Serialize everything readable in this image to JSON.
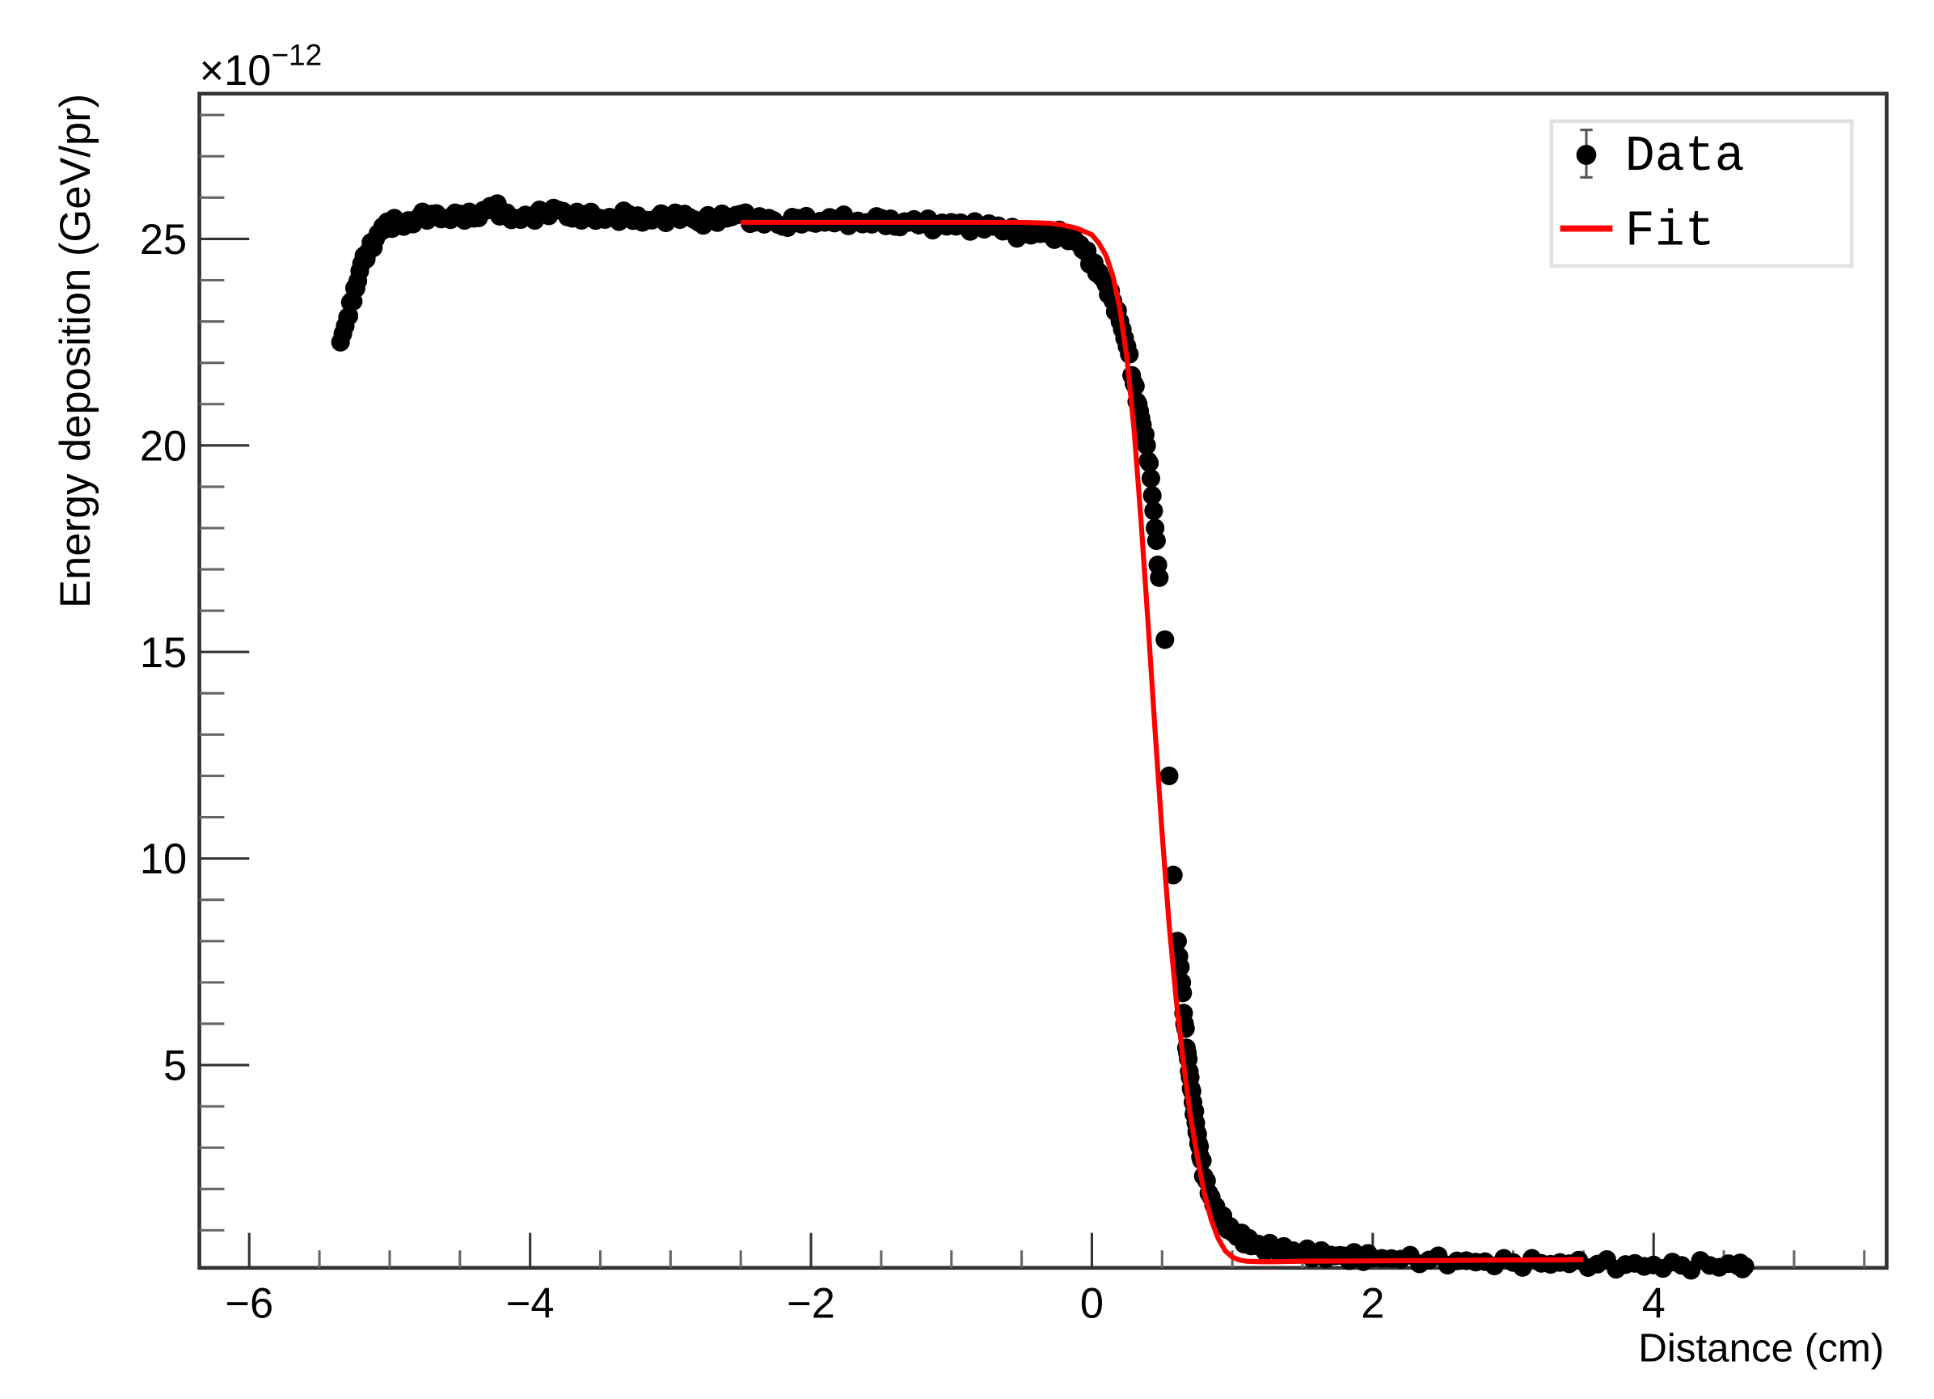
{
  "chart_data": {
    "type": "scatter",
    "title": "",
    "xlabel": "Distance (cm)",
    "ylabel": "Energy deposition (GeV/pr)",
    "y_multiplier": "×10⁻¹²",
    "y_multiplier_base": "×10",
    "y_multiplier_exp": "−12",
    "xlim": [
      -6.35,
      5.65
    ],
    "ylim": [
      0,
      28.5
    ],
    "grid": false,
    "legend_position": "top-right",
    "x_ticks": [
      {
        "value": -6,
        "label": "−6"
      },
      {
        "value": -4,
        "label": "−4"
      },
      {
        "value": -2,
        "label": "−2"
      },
      {
        "value": 0,
        "label": "0"
      },
      {
        "value": 2,
        "label": "2"
      },
      {
        "value": 4,
        "label": "4"
      }
    ],
    "y_ticks": [
      {
        "value": 5,
        "label": "5"
      },
      {
        "value": 10,
        "label": "10"
      },
      {
        "value": 15,
        "label": "15"
      },
      {
        "value": 20,
        "label": "20"
      },
      {
        "value": 25,
        "label": "25"
      }
    ],
    "legend": [
      {
        "label": "Data",
        "marker": "point-with-errorbar",
        "color": "#000000"
      },
      {
        "label": "Fit",
        "marker": "line",
        "color": "#ff0000"
      }
    ],
    "series": [
      {
        "name": "Data",
        "kind": "points",
        "color": "#000000",
        "x": [
          -5.35,
          -5.3,
          -5.27,
          -5.24,
          -5.2,
          -5.15,
          -5.1,
          -5.05,
          -5.0,
          -4.95,
          -4.9,
          -4.8,
          -4.7,
          -4.6,
          -4.5,
          -4.4,
          -4.3,
          -4.25,
          -4.2,
          -4.1,
          -4.0,
          -3.9,
          -3.8,
          -3.7,
          -3.6,
          -3.5,
          -3.4,
          -3.3,
          -3.2,
          -3.1,
          -3.0,
          -2.9,
          -2.8,
          -2.7,
          -2.6,
          -2.5,
          -2.4,
          -2.3,
          -2.2,
          -2.1,
          -2.0,
          -1.9,
          -1.8,
          -1.7,
          -1.6,
          -1.5,
          -1.4,
          -1.3,
          -1.2,
          -1.1,
          -1.0,
          -0.9,
          -0.8,
          -0.7,
          -0.6,
          -0.5,
          -0.4,
          -0.3,
          -0.2,
          -0.1,
          -0.05,
          0.0,
          0.05,
          0.1,
          0.15,
          0.2,
          0.25,
          0.3,
          0.33,
          0.36,
          0.39,
          0.42,
          0.45,
          0.48,
          0.52,
          0.55,
          0.58,
          0.61,
          0.64,
          0.66,
          0.68,
          0.7,
          0.72,
          0.74,
          0.76,
          0.78,
          0.8,
          0.85,
          0.9,
          0.95,
          1.0,
          1.05,
          1.1,
          1.15,
          1.2,
          1.3,
          1.4,
          1.5,
          1.6,
          1.7,
          1.8,
          1.9,
          2.0,
          2.2,
          2.4,
          2.6,
          2.8,
          3.0,
          3.2,
          3.4,
          3.6,
          3.8,
          4.0,
          4.2,
          4.4,
          4.6,
          4.65
        ],
        "y": [
          22.5,
          23.1,
          23.5,
          23.8,
          24.4,
          24.7,
          25.0,
          25.3,
          25.35,
          25.4,
          25.3,
          25.5,
          25.6,
          25.5,
          25.6,
          25.5,
          25.7,
          25.8,
          25.6,
          25.5,
          25.55,
          25.6,
          25.7,
          25.5,
          25.6,
          25.5,
          25.5,
          25.6,
          25.4,
          25.5,
          25.5,
          25.6,
          25.4,
          25.5,
          25.5,
          25.6,
          25.4,
          25.5,
          25.3,
          25.5,
          25.4,
          25.4,
          25.5,
          25.4,
          25.4,
          25.5,
          25.3,
          25.4,
          25.4,
          25.3,
          25.4,
          25.3,
          25.3,
          25.3,
          25.2,
          25.1,
          25.2,
          25.1,
          25.1,
          24.9,
          24.7,
          24.4,
          24.2,
          23.9,
          23.5,
          23.0,
          22.4,
          21.5,
          21.0,
          20.5,
          20.0,
          19.2,
          18.0,
          16.8,
          15.3,
          12.0,
          9.6,
          8.0,
          7.0,
          6.0,
          5.3,
          4.7,
          4.1,
          3.6,
          3.1,
          2.7,
          2.3,
          1.8,
          1.4,
          1.15,
          0.95,
          0.85,
          0.75,
          0.68,
          0.62,
          0.55,
          0.5,
          0.45,
          0.42,
          0.4,
          0.38,
          0.35,
          0.33,
          0.3,
          0.28,
          0.26,
          0.24,
          0.22,
          0.2,
          0.19,
          0.18,
          0.17,
          0.16,
          0.15,
          0.15,
          0.14,
          0.13
        ]
      },
      {
        "name": "Fit",
        "kind": "line",
        "color": "#ff0000",
        "x_range": [
          -2.5,
          3.5
        ],
        "x": [
          -2.5,
          -2.0,
          -1.5,
          -1.0,
          -0.5,
          -0.3,
          -0.2,
          -0.1,
          0.0,
          0.05,
          0.1,
          0.15,
          0.2,
          0.25,
          0.3,
          0.35,
          0.4,
          0.45,
          0.5,
          0.55,
          0.6,
          0.65,
          0.7,
          0.75,
          0.8,
          0.85,
          0.9,
          0.95,
          1.0,
          1.05,
          1.1,
          1.2,
          1.3,
          1.5,
          2.0,
          2.5,
          3.0,
          3.5
        ],
        "y": [
          25.4,
          25.4,
          25.4,
          25.4,
          25.4,
          25.38,
          25.33,
          25.25,
          25.1,
          24.9,
          24.6,
          24.1,
          23.3,
          22.1,
          20.4,
          18.2,
          15.7,
          13.1,
          10.6,
          8.4,
          6.6,
          5.1,
          3.8,
          2.8,
          1.9,
          1.25,
          0.8,
          0.5,
          0.35,
          0.28,
          0.25,
          0.24,
          0.24,
          0.25,
          0.26,
          0.27,
          0.28,
          0.29
        ]
      }
    ]
  }
}
